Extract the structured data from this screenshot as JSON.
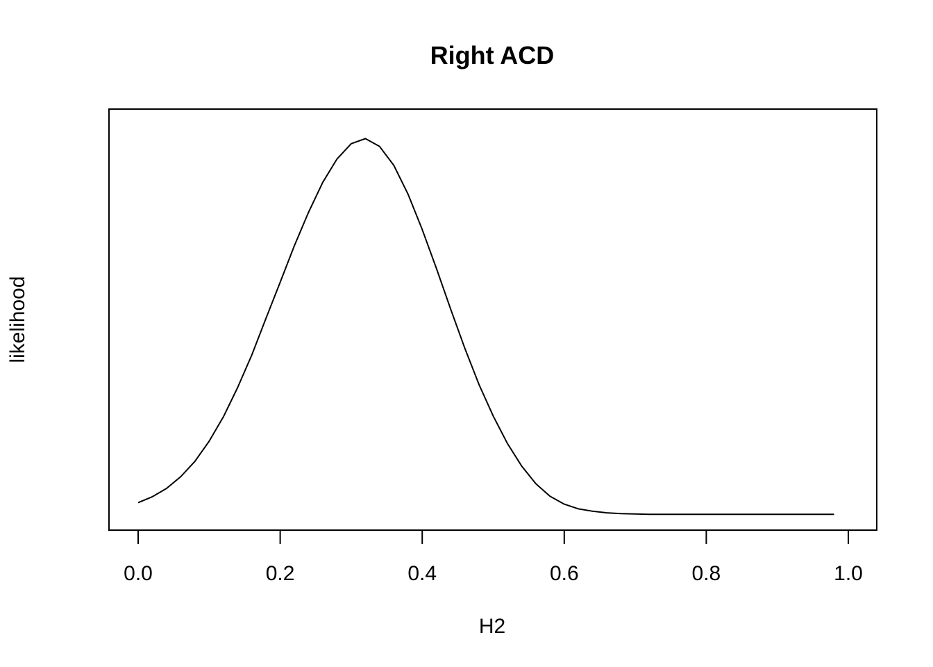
{
  "chart_data": {
    "type": "line",
    "title": "Right ACD",
    "xlabel": "H2",
    "ylabel": "likelihood",
    "xlim": [
      0.0,
      1.0
    ],
    "ylim": [
      -0.04,
      1.03
    ],
    "xticks": [
      "0.0",
      "0.2",
      "0.4",
      "0.6",
      "0.8",
      "1.0"
    ],
    "yticks_shown": false,
    "grid": false,
    "line_color": "#000000",
    "series": [
      {
        "x": [
          0.0,
          0.02,
          0.04,
          0.06,
          0.08,
          0.1,
          0.12,
          0.14,
          0.16,
          0.18,
          0.2,
          0.22,
          0.24,
          0.26,
          0.28,
          0.3,
          0.32,
          0.34,
          0.36,
          0.38,
          0.4,
          0.42,
          0.44,
          0.46,
          0.48,
          0.5,
          0.52,
          0.54,
          0.56,
          0.58,
          0.6,
          0.62,
          0.64,
          0.66,
          0.68,
          0.7,
          0.72,
          0.74,
          0.76,
          0.78,
          0.8,
          0.82,
          0.84,
          0.86,
          0.88,
          0.9,
          0.92,
          0.94,
          0.96,
          0.98
        ],
        "values": [
          0.03,
          0.045,
          0.066,
          0.096,
          0.135,
          0.186,
          0.248,
          0.322,
          0.405,
          0.498,
          0.59,
          0.683,
          0.768,
          0.844,
          0.903,
          0.942,
          0.955,
          0.935,
          0.887,
          0.814,
          0.724,
          0.625,
          0.522,
          0.422,
          0.33,
          0.25,
          0.18,
          0.123,
          0.078,
          0.046,
          0.026,
          0.014,
          0.008,
          0.004,
          0.002,
          0.001,
          0.0,
          0.0,
          0.0,
          0.0,
          0.0,
          0.0,
          0.0,
          0.0,
          0.0,
          0.0,
          0.0,
          0.0,
          0.0,
          0.0
        ]
      }
    ]
  }
}
